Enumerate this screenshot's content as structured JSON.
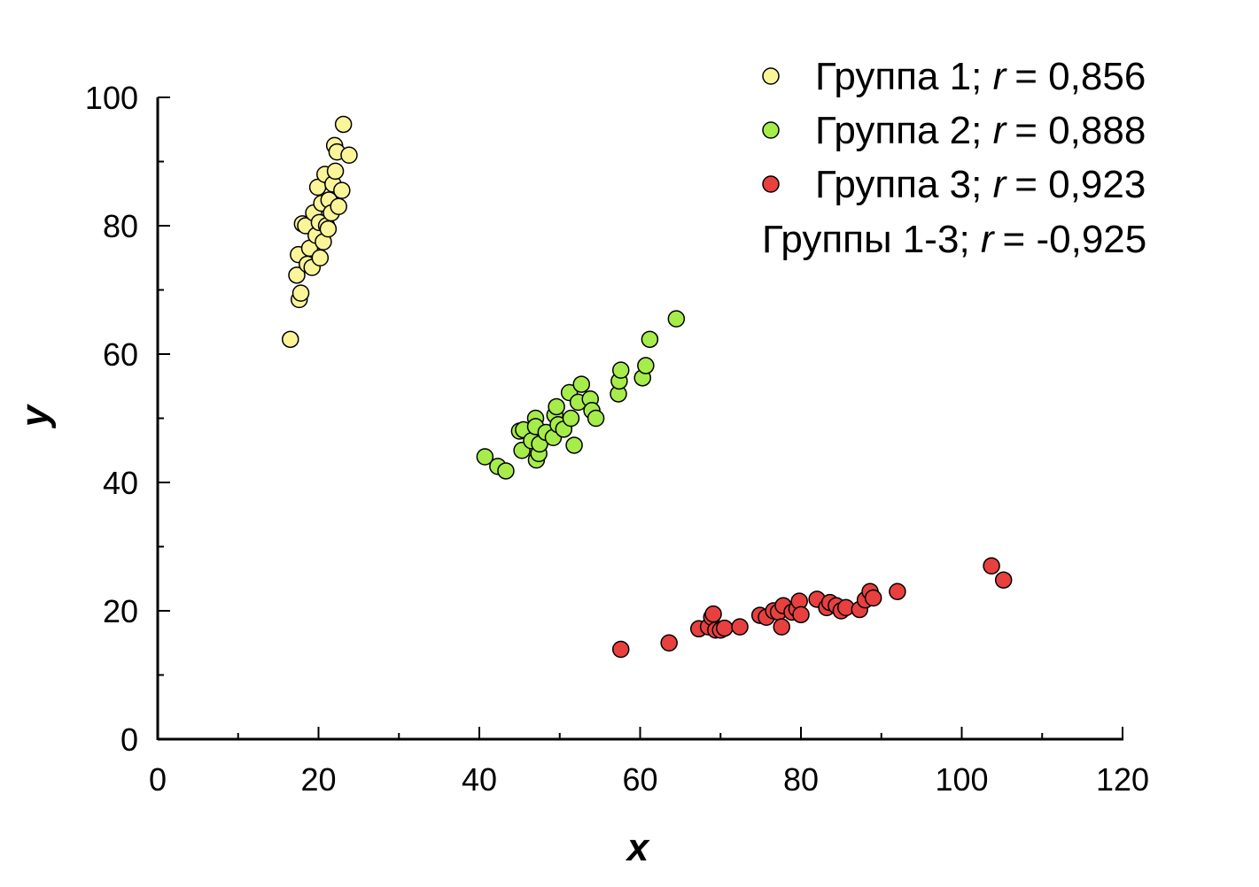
{
  "chart_data": {
    "type": "scatter",
    "xlabel": "x",
    "ylabel": "y",
    "xlim": [
      0,
      120
    ],
    "ylim": [
      0,
      100
    ],
    "xticks": [
      0,
      20,
      40,
      60,
      80,
      100,
      120
    ],
    "yticks": [
      0,
      20,
      40,
      60,
      80,
      100
    ],
    "grid": false,
    "legend_position": "top-right",
    "series": [
      {
        "name": "Группа 1",
        "r_label": "r",
        "r_value": "= 0,856",
        "color": "#fbf59a",
        "points": [
          [
            16.5,
            62.3
          ],
          [
            17.3,
            72.3
          ],
          [
            17.6,
            68.5
          ],
          [
            17.8,
            69.5
          ],
          [
            17.5,
            75.5
          ],
          [
            18.0,
            80.3
          ],
          [
            18.4,
            80.0
          ],
          [
            18.6,
            74.0
          ],
          [
            18.9,
            76.5
          ],
          [
            19.2,
            73.5
          ],
          [
            19.4,
            82.0
          ],
          [
            19.7,
            78.5
          ],
          [
            19.9,
            86.0
          ],
          [
            20.1,
            80.5
          ],
          [
            20.2,
            75.0
          ],
          [
            20.4,
            83.5
          ],
          [
            20.6,
            77.5
          ],
          [
            20.8,
            88.0
          ],
          [
            21.0,
            80.0
          ],
          [
            21.3,
            84.0
          ],
          [
            21.6,
            82.0
          ],
          [
            21.8,
            86.5
          ],
          [
            22.0,
            92.5
          ],
          [
            22.1,
            88.5
          ],
          [
            22.3,
            91.5
          ],
          [
            22.5,
            83.0
          ],
          [
            22.9,
            85.5
          ],
          [
            23.1,
            95.8
          ],
          [
            23.8,
            91.0
          ],
          [
            21.2,
            79.5
          ]
        ]
      },
      {
        "name": "Группа 2",
        "r_label": "r",
        "r_value": "= 0,888",
        "color": "#a6ec4a",
        "points": [
          [
            40.7,
            44.0
          ],
          [
            42.3,
            42.5
          ],
          [
            43.3,
            41.8
          ],
          [
            45.0,
            48.0
          ],
          [
            45.3,
            45.0
          ],
          [
            45.5,
            48.2
          ],
          [
            46.5,
            46.5
          ],
          [
            47.0,
            50.0
          ],
          [
            47.0,
            48.7
          ],
          [
            47.1,
            43.5
          ],
          [
            47.4,
            44.5
          ],
          [
            47.5,
            46.0
          ],
          [
            48.3,
            47.8
          ],
          [
            49.2,
            47.0
          ],
          [
            49.4,
            50.5
          ],
          [
            49.6,
            51.8
          ],
          [
            49.8,
            49.0
          ],
          [
            50.5,
            48.3
          ],
          [
            51.2,
            54.0
          ],
          [
            51.4,
            50.0
          ],
          [
            51.8,
            45.8
          ],
          [
            52.3,
            52.5
          ],
          [
            52.7,
            55.3
          ],
          [
            53.8,
            53.0
          ],
          [
            54.0,
            51.2
          ],
          [
            54.5,
            50.0
          ],
          [
            57.3,
            53.8
          ],
          [
            57.4,
            55.8
          ],
          [
            57.6,
            57.5
          ],
          [
            60.3,
            56.3
          ],
          [
            60.7,
            58.2
          ],
          [
            61.2,
            62.3
          ],
          [
            64.5,
            65.5
          ]
        ]
      },
      {
        "name": "Группа 3",
        "r_label": "r",
        "r_value": "= 0,923",
        "color": "#e8403e",
        "points": [
          [
            57.6,
            14.0
          ],
          [
            63.6,
            15.0
          ],
          [
            67.3,
            17.2
          ],
          [
            68.5,
            17.5
          ],
          [
            68.9,
            19.0
          ],
          [
            69.1,
            19.5
          ],
          [
            69.4,
            17.0
          ],
          [
            70.0,
            17.0
          ],
          [
            70.5,
            17.3
          ],
          [
            72.4,
            17.5
          ],
          [
            74.9,
            19.3
          ],
          [
            75.7,
            19.0
          ],
          [
            76.6,
            20.0
          ],
          [
            77.2,
            19.8
          ],
          [
            77.6,
            17.5
          ],
          [
            77.8,
            20.8
          ],
          [
            78.9,
            19.8
          ],
          [
            79.5,
            20.3
          ],
          [
            79.8,
            21.5
          ],
          [
            80.0,
            19.4
          ],
          [
            82.0,
            21.8
          ],
          [
            83.2,
            20.5
          ],
          [
            83.6,
            21.3
          ],
          [
            84.4,
            20.8
          ],
          [
            85.0,
            20.0
          ],
          [
            85.6,
            20.5
          ],
          [
            87.3,
            20.2
          ],
          [
            88.0,
            21.7
          ],
          [
            88.6,
            23.0
          ],
          [
            89.0,
            22.0
          ],
          [
            92.0,
            23.0
          ],
          [
            103.7,
            27.0
          ],
          [
            105.2,
            24.8
          ]
        ]
      }
    ],
    "overall": {
      "name": "Группы 1-3",
      "r_label": "r",
      "r_value": "= -0,925"
    }
  }
}
